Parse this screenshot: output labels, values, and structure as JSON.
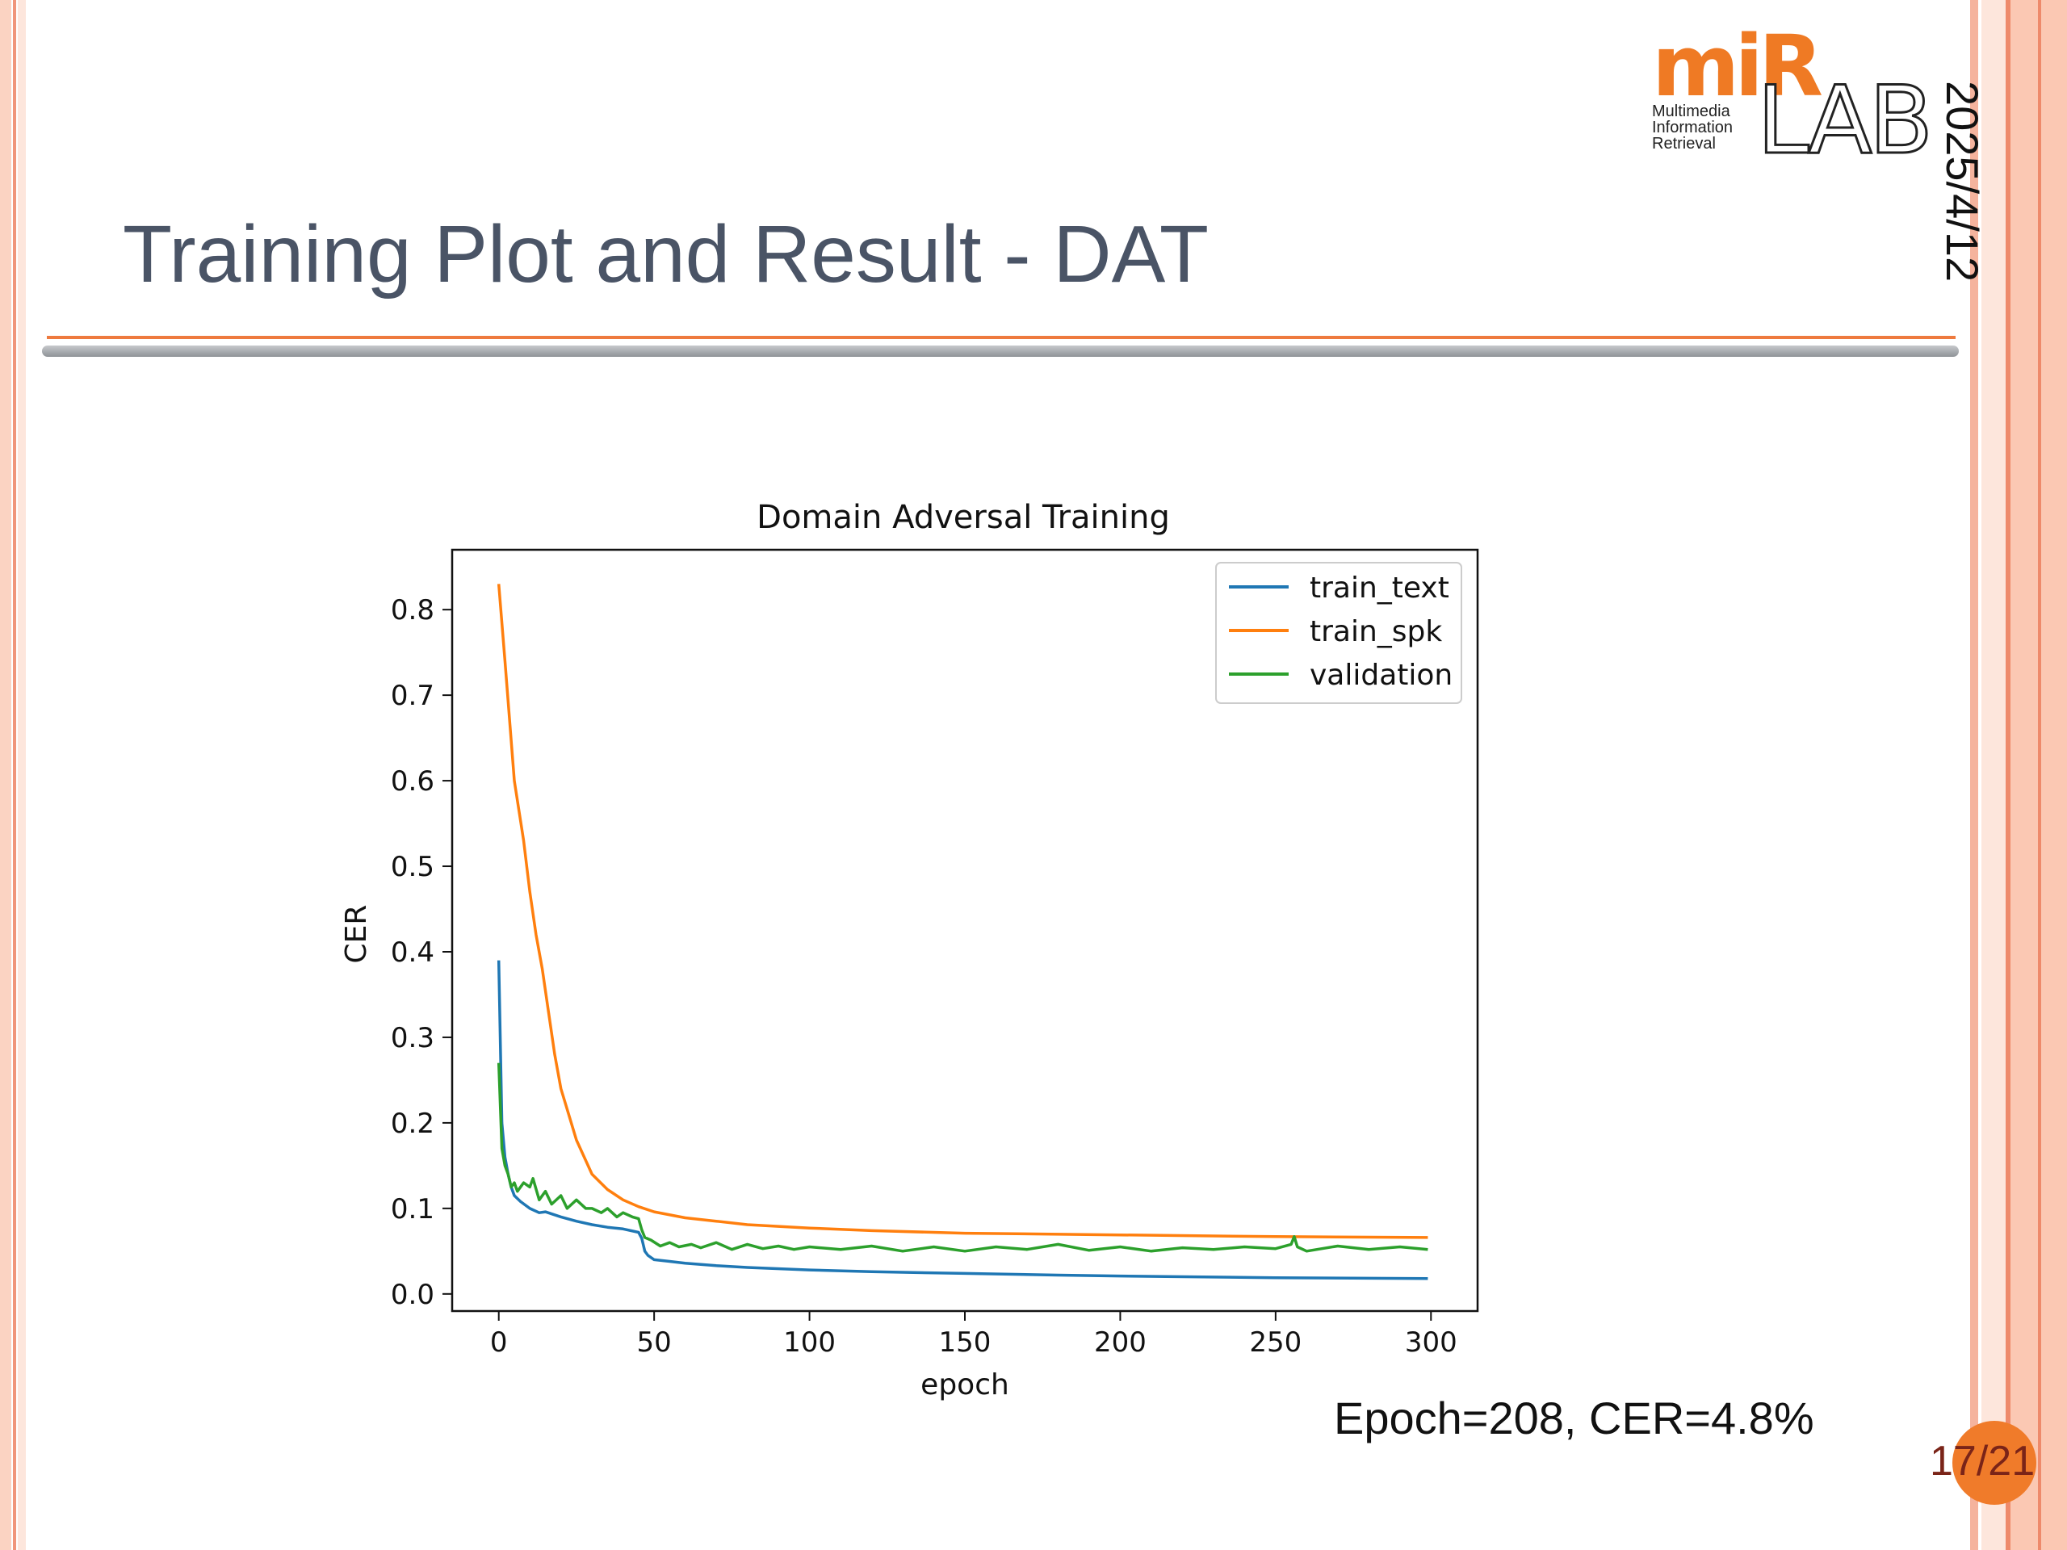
{
  "slide": {
    "title": "Training Plot and Result - DAT",
    "date": "2025/4/12",
    "result": "Epoch=208, CER=4.8%",
    "page": "17/21"
  },
  "logo": {
    "brand": "miR",
    "lab": "LAB",
    "lines": [
      "Multimedia",
      "Information",
      "Retrieval"
    ]
  },
  "colors": {
    "accent": "#ee7a3e",
    "page_circle": "#f07b2a",
    "title": "#4a5466"
  },
  "chart_data": {
    "type": "line",
    "title": "Domain Adversal Training",
    "xlabel": "epoch",
    "ylabel": "CER",
    "xlim": [
      -15,
      315
    ],
    "ylim": [
      -0.02,
      0.87
    ],
    "xticks": [
      0,
      50,
      100,
      150,
      200,
      250,
      300
    ],
    "yticks": [
      0.0,
      0.1,
      0.2,
      0.3,
      0.4,
      0.5,
      0.6,
      0.7,
      0.8
    ],
    "grid": false,
    "legend": "top-right",
    "series": [
      {
        "name": "train_text",
        "color": "#1f77b4",
        "x": [
          0,
          1,
          2,
          3,
          4,
          5,
          7,
          10,
          13,
          15,
          20,
          25,
          30,
          35,
          40,
          45,
          46,
          47,
          48,
          50,
          55,
          60,
          70,
          80,
          100,
          120,
          150,
          180,
          200,
          250,
          299
        ],
        "y": [
          0.39,
          0.2,
          0.16,
          0.14,
          0.125,
          0.115,
          0.108,
          0.1,
          0.095,
          0.096,
          0.09,
          0.085,
          0.081,
          0.078,
          0.076,
          0.072,
          0.065,
          0.05,
          0.045,
          0.04,
          0.038,
          0.036,
          0.033,
          0.031,
          0.028,
          0.026,
          0.024,
          0.022,
          0.021,
          0.019,
          0.018
        ]
      },
      {
        "name": "train_spk",
        "color": "#ff7f0e",
        "x": [
          0,
          2,
          5,
          8,
          10,
          12,
          14,
          16,
          18,
          20,
          25,
          30,
          35,
          40,
          45,
          50,
          60,
          70,
          80,
          100,
          120,
          150,
          200,
          250,
          299
        ],
        "y": [
          0.83,
          0.74,
          0.6,
          0.53,
          0.47,
          0.42,
          0.38,
          0.33,
          0.28,
          0.24,
          0.18,
          0.14,
          0.122,
          0.11,
          0.102,
          0.096,
          0.089,
          0.085,
          0.081,
          0.077,
          0.074,
          0.071,
          0.069,
          0.067,
          0.066
        ]
      },
      {
        "name": "validation",
        "color": "#2ca02c",
        "x": [
          0,
          1,
          2,
          3,
          4,
          5,
          6,
          8,
          10,
          11,
          13,
          15,
          17,
          20,
          22,
          25,
          28,
          30,
          33,
          35,
          38,
          40,
          43,
          45,
          46,
          47,
          49,
          52,
          55,
          58,
          62,
          65,
          70,
          75,
          80,
          85,
          90,
          95,
          100,
          110,
          120,
          130,
          140,
          150,
          160,
          170,
          180,
          190,
          200,
          210,
          220,
          230,
          240,
          250,
          255,
          256,
          257,
          260,
          270,
          280,
          290,
          299
        ],
        "y": [
          0.27,
          0.17,
          0.15,
          0.14,
          0.125,
          0.13,
          0.12,
          0.13,
          0.125,
          0.135,
          0.11,
          0.12,
          0.105,
          0.115,
          0.1,
          0.11,
          0.1,
          0.1,
          0.095,
          0.1,
          0.09,
          0.095,
          0.09,
          0.088,
          0.075,
          0.066,
          0.063,
          0.056,
          0.06,
          0.055,
          0.058,
          0.054,
          0.06,
          0.052,
          0.058,
          0.053,
          0.056,
          0.052,
          0.055,
          0.052,
          0.056,
          0.05,
          0.055,
          0.05,
          0.055,
          0.052,
          0.058,
          0.051,
          0.055,
          0.05,
          0.054,
          0.052,
          0.055,
          0.053,
          0.058,
          0.067,
          0.055,
          0.05,
          0.056,
          0.052,
          0.055,
          0.052
        ]
      }
    ]
  }
}
